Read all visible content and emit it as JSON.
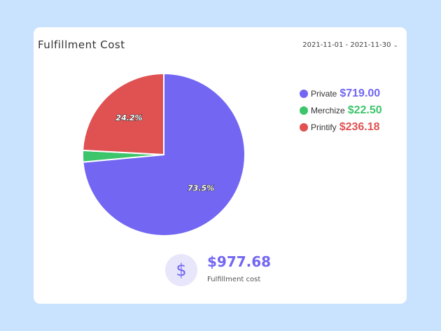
{
  "card": {
    "title": "Fulfillment Cost",
    "date_range": "2021-11-01 - 2021-11-30"
  },
  "legend": [
    {
      "name": "Private",
      "value": "$719.00",
      "color": "#7266f3"
    },
    {
      "name": "Merchize",
      "value": "$22.50",
      "color": "#3cc56b"
    },
    {
      "name": "Printify",
      "value": "$236.18",
      "color": "#e05151"
    }
  ],
  "summary": {
    "icon": "dollar-icon",
    "total": "$977.68",
    "label": "Fulfillment cost"
  },
  "chart_data": {
    "type": "pie",
    "categories": [
      "Private",
      "Merchize",
      "Printify"
    ],
    "values": [
      719.0,
      22.5,
      236.18
    ],
    "slice_labels": [
      "73.5%",
      "",
      "24.2%"
    ],
    "colors": [
      "#7266f3",
      "#3cc56b",
      "#e05151"
    ]
  }
}
